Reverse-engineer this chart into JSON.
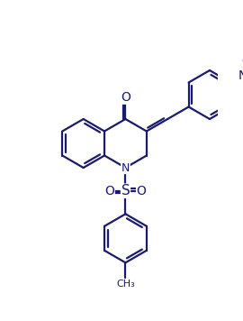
{
  "bg_color": "#ffffff",
  "line_color": "#1a1a6e",
  "line_width": 1.6,
  "figsize": [
    2.7,
    3.56
  ],
  "dpi": 100,
  "xlim": [
    0,
    10
  ],
  "ylim": [
    0,
    13.2
  ]
}
